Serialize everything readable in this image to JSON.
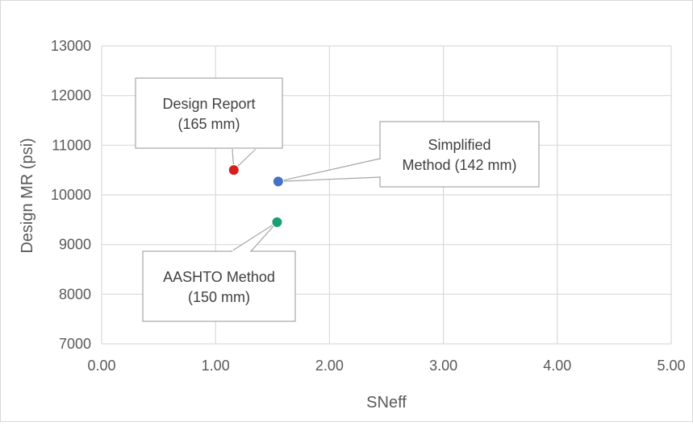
{
  "chart_data": {
    "type": "scatter",
    "title": "",
    "xlabel": "SNeff",
    "ylabel": "Design MR (psi)",
    "xlim": [
      0,
      5
    ],
    "ylim": [
      7000,
      13000
    ],
    "x_ticks": [
      0,
      1,
      2,
      3,
      4,
      5
    ],
    "x_tick_labels": [
      "0.00",
      "1.00",
      "2.00",
      "3.00",
      "4.00",
      "5.00"
    ],
    "y_ticks": [
      7000,
      8000,
      9000,
      10000,
      11000,
      12000,
      13000
    ],
    "y_tick_labels": [
      "7000",
      "8000",
      "9000",
      "10000",
      "11000",
      "12000",
      "13000"
    ],
    "grid": true,
    "legend": "none",
    "points": [
      {
        "x": 1.16,
        "y": 10500,
        "color": "#d62020",
        "label_lines": [
          "Design Report",
          "(165 mm)"
        ]
      },
      {
        "x": 1.55,
        "y": 10270,
        "color": "#4472c4",
        "label_lines": [
          "Simplified",
          "Method (142 mm)"
        ]
      },
      {
        "x": 1.54,
        "y": 9450,
        "color": "#1aa070",
        "label_lines": [
          "AASHTO Method",
          "(150 mm)"
        ]
      }
    ]
  }
}
